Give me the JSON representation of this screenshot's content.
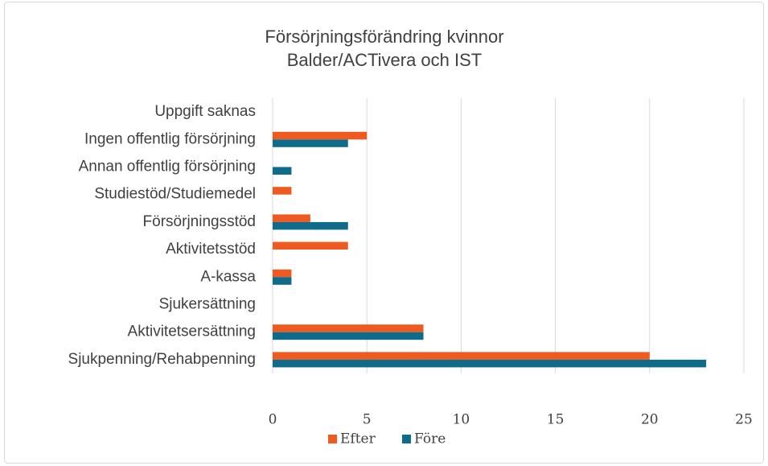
{
  "chart_data": {
    "type": "bar",
    "orientation": "horizontal",
    "title": [
      "Försörjningsförändring kvinnor",
      "Balder/ACTivera och IST"
    ],
    "categories": [
      "Uppgift saknas",
      "Ingen offentlig försörjning",
      "Annan offentlig försörjning",
      "Studiestöd/Studiemedel",
      "Försörjningsstöd",
      "Aktivitetsstöd",
      "A-kassa",
      "Sjukersättning",
      "Aktivitetsersättning",
      "Sjukpenning/Rehabpenning"
    ],
    "series": [
      {
        "name": "Efter",
        "color": "#ee5a1f",
        "values": [
          0,
          5,
          0,
          1,
          2,
          4,
          1,
          0,
          8,
          20
        ]
      },
      {
        "name": "Före",
        "color": "#0f6b8a",
        "values": [
          0,
          4,
          1,
          0,
          4,
          0,
          1,
          0,
          8,
          23
        ]
      }
    ],
    "xlim": [
      0,
      25
    ],
    "xticks": [
      0,
      5,
      10,
      15,
      20,
      25
    ],
    "grid": true,
    "legend": "bottom"
  }
}
